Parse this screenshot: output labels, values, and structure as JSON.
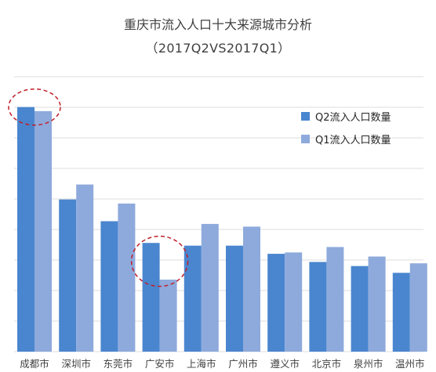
{
  "chart_data": {
    "type": "bar",
    "title": "重庆市流入人口十大来源城市分析",
    "subtitle": "（2017Q2VS2017Q1）",
    "categories": [
      "成都市",
      "深圳市",
      "东莞市",
      "广安市",
      "上海市",
      "广州市",
      "遵义市",
      "北京市",
      "泉州市",
      "温州市"
    ],
    "series": [
      {
        "name": "Q2流入人口数量",
        "color": "#4a86cf",
        "values": [
          9.0,
          5.6,
          4.8,
          4.0,
          3.9,
          3.9,
          3.6,
          3.3,
          3.15,
          2.9
        ]
      },
      {
        "name": "Q1流入人口数量",
        "color": "#8eaadc",
        "values": [
          8.85,
          6.15,
          5.45,
          2.65,
          4.7,
          4.6,
          3.65,
          3.85,
          3.5,
          3.25
        ]
      }
    ],
    "ylim": [
      0,
      10
    ],
    "grid": true,
    "legend_position": "right",
    "annotations": [
      {
        "type": "dashed-ellipse",
        "category": "成都市",
        "color": "#c0202a"
      },
      {
        "type": "dashed-ellipse",
        "category": "广安市",
        "color": "#c0202a"
      }
    ]
  }
}
